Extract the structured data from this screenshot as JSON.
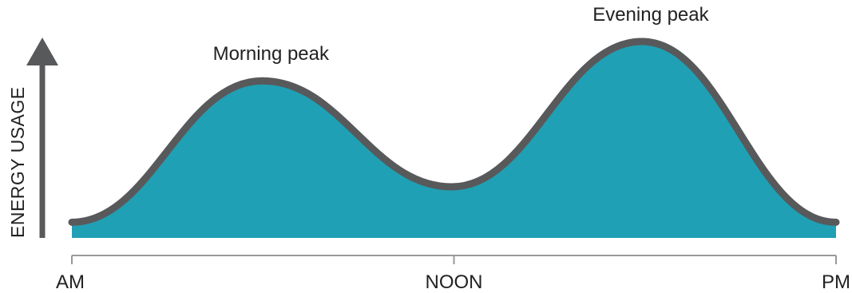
{
  "chart_data": {
    "type": "area",
    "title": "",
    "xlabel": "",
    "ylabel": "ENERGY USAGE",
    "x_ticks": [
      "AM",
      "NOON",
      "PM"
    ],
    "x_range": [
      0,
      1
    ],
    "ylim": [
      0,
      1
    ],
    "series": [
      {
        "x": [
          0,
          0.249,
          0.497,
          0.746,
          1.0
        ],
        "y": [
          0.08,
          0.8,
          0.26,
          1.0,
          0.08
        ]
      }
    ],
    "annotations": [
      {
        "text": "Morning peak",
        "x": 0.249,
        "y": 0.8
      },
      {
        "text": "Evening peak",
        "x": 0.746,
        "y": 1.0
      }
    ],
    "colors": {
      "fill": "#20a0b4",
      "line": "#58595b",
      "axis": "#999999",
      "arrow": "#58595b"
    },
    "grid": false
  }
}
